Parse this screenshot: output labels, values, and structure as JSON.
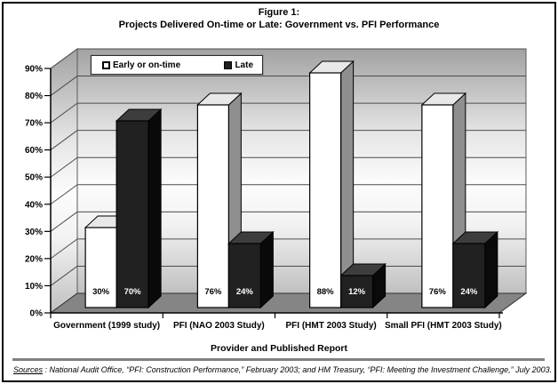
{
  "page": {
    "title_line1": "Figure 1:",
    "title_line2": "Projects Delivered On-time or Late: Government vs. PFI Performance"
  },
  "chart_data": {
    "type": "bar",
    "projection": "3d",
    "title": "Figure 1: Projects Delivered On-time or Late: Government vs. PFI Performance",
    "categories": [
      "Government (1999 study)",
      "PFI (NAO 2003 Study)",
      "PFI (HMT 2003 Study)",
      "Small PFI (HMT 2003 Study)"
    ],
    "series": [
      {
        "name": "Early or on-time",
        "color": "#ffffff",
        "top_color": "#e8e8e8",
        "side_color": "#8f8f8f",
        "label_color": "#000000",
        "values": [
          30,
          76,
          88,
          76
        ]
      },
      {
        "name": "Late",
        "color": "#212121",
        "top_color": "#3d3d3d",
        "side_color": "#0a0a0a",
        "label_color": "#ffffff",
        "values": [
          70,
          24,
          12,
          24
        ]
      }
    ],
    "data_label_suffix": "%",
    "xlabel": "Provider and Published Report",
    "ylabel": "",
    "ylim": [
      0,
      90
    ],
    "ytick_step": 10,
    "ytick_suffix": "%",
    "grid": true,
    "legend_position": "top-left",
    "style": {
      "floor_color": "#858585",
      "wall_top_color": "#a2a2a2",
      "wall_mid_color": "#fcfcfc",
      "wall_bottom_color": "#c0c0c0",
      "grid_color": "#4d4d4d",
      "axis_color": "#000000"
    }
  },
  "footer": {
    "sources_label": "Sources",
    "sources_text": " : National Audit Office, “PFI: Construction Performance,” February 2003; and HM Treasury, “PFI: Meeting the Investment Challenge,” July 2003."
  }
}
